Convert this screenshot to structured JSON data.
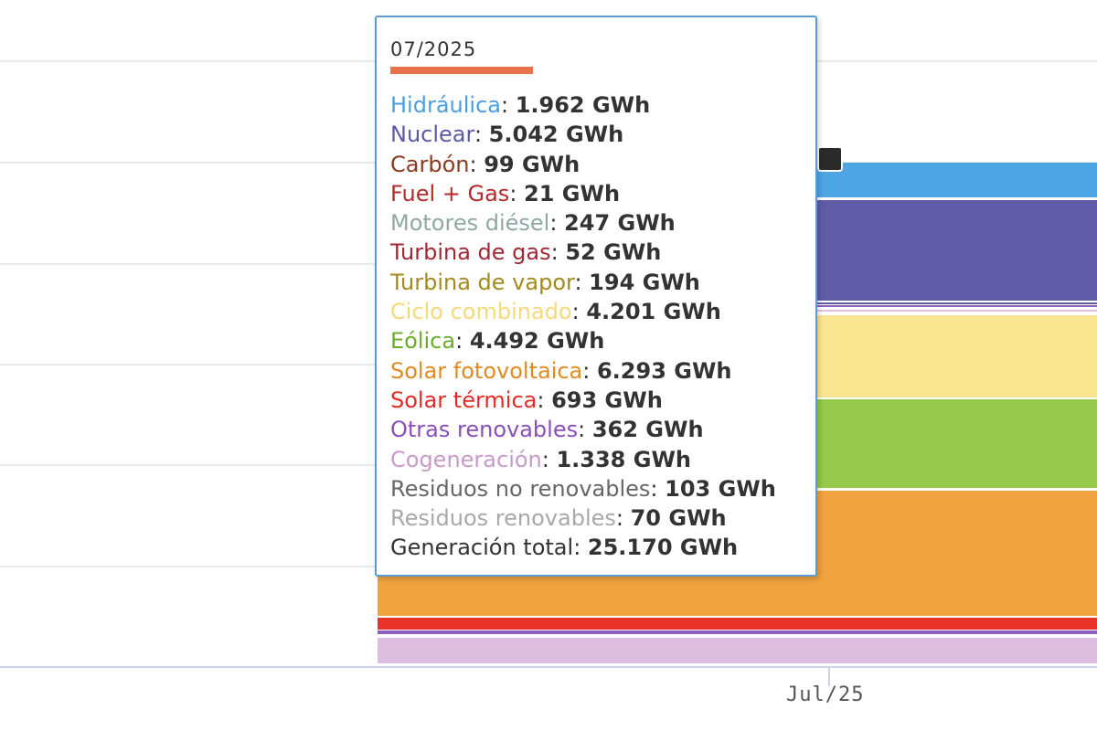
{
  "chart_data": {
    "type": "area",
    "x": [
      "07/2025"
    ],
    "x_tick_labels": [
      "Jul/25"
    ],
    "tooltip": {
      "title": "07/2025",
      "series": [
        {
          "name": "Hidráulica",
          "value_label": "1.962 GWh",
          "value": 1962,
          "color": "#4a9fe0"
        },
        {
          "name": "Nuclear",
          "value_label": "5.042 GWh",
          "value": 5042,
          "color": "#5c5aa6"
        },
        {
          "name": "Carbón",
          "value_label": "99 GWh",
          "value": 99,
          "color": "#8b3a1f"
        },
        {
          "name": "Fuel + Gas",
          "value_label": "21 GWh",
          "value": 21,
          "color": "#b22a2a"
        },
        {
          "name": "Motores diésel",
          "value_label": "247 GWh",
          "value": 247,
          "color": "#8fa8a3"
        },
        {
          "name": "Turbina de gas",
          "value_label": "52 GWh",
          "value": 52,
          "color": "#a32834"
        },
        {
          "name": "Turbina de vapor",
          "value_label": "194 GWh",
          "value": 194,
          "color": "#a38a1e"
        },
        {
          "name": "Ciclo combinado",
          "value_label": "4.201 GWh",
          "value": 4201,
          "color": "#f6d97a"
        },
        {
          "name": "Eólica",
          "value_label": "4.492 GWh",
          "value": 4492,
          "color": "#6aac2e"
        },
        {
          "name": "Solar fotovoltaica",
          "value_label": "6.293 GWh",
          "value": 6293,
          "color": "#e08a22"
        },
        {
          "name": "Solar térmica",
          "value_label": "693 GWh",
          "value": 693,
          "color": "#e12b26"
        },
        {
          "name": "Otras renovables",
          "value_label": "362 GWh",
          "value": 362,
          "color": "#8a4fb8"
        },
        {
          "name": "Cogeneración",
          "value_label": "1.338 GWh",
          "value": 1338,
          "color": "#c99ac9"
        },
        {
          "name": "Residuos no renovables",
          "value_label": "103 GWh",
          "value": 103,
          "color": "#666666"
        },
        {
          "name": "Residuos renovables",
          "value_label": "70 GWh",
          "value": 70,
          "color": "#a8a8a8"
        },
        {
          "name": "Generación total",
          "value_label": "25.170 GWh",
          "value": 25170,
          "color": "#333333"
        }
      ]
    },
    "visible_area_fills": [
      {
        "series": "Hidráulica",
        "color": "#4ea5e4"
      },
      {
        "series": "Nuclear",
        "color": "#5f5ba7"
      },
      {
        "series": "Ciclo combinado",
        "color": "#fae690"
      },
      {
        "series": "Eólica",
        "color": "#97c94b"
      },
      {
        "series": "Solar fotovoltaica",
        "color": "#f0a33e"
      },
      {
        "series": "Solar térmica",
        "color": "#e8332b"
      },
      {
        "series": "Otras renovables",
        "color": "#8a5fc0"
      },
      {
        "series": "Cogeneración",
        "color": "#dfbde0"
      }
    ],
    "grid": true,
    "legend": "none"
  }
}
